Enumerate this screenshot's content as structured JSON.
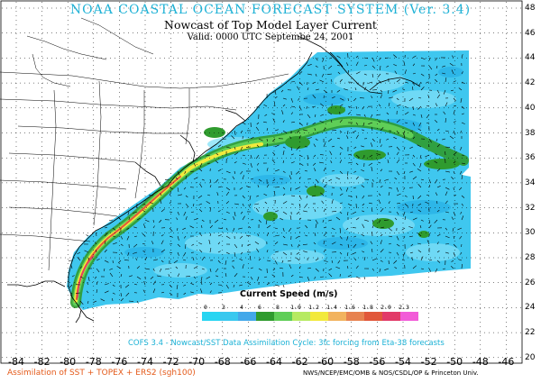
{
  "title": {
    "line1": "NOAA COASTAL OCEAN FORECAST SYSTEM (Ver. 3.4)",
    "line2": "Nowcast of Top Model Layer Current",
    "line3": "Valid: 0000 UTC Septembe 24, 2001"
  },
  "legend": {
    "title": "Current Speed (m/s)",
    "labels": [
      "0",
      "3",
      "4",
      "6",
      "8",
      "1.0",
      "1.2",
      "1.4",
      "1.6",
      "1.8",
      "2.0",
      "2.3"
    ],
    "colors": [
      "#27d5f2",
      "#39c8ef",
      "#43a8ea",
      "#2f9b2e",
      "#5fce57",
      "#b6ea62",
      "#f2e93c",
      "#f2b35e",
      "#e78250",
      "#e1573a",
      "#e23a68",
      "#f25bd8"
    ]
  },
  "footer": {
    "cofs_line": "COFS 3.4 - Nowcast/SST Data Assimilation Cycle: 3fc forcing from Eta-38 forecasts",
    "assimilation": "Assimilation of SST + TOPEX + ERS2 (sgh100)",
    "credit": "NWS/NCEP/EMC/OMB & NOS/CSDL/OP & Princeton Univ."
  },
  "axes": {
    "longitude_ticks": [
      "-84",
      "-82",
      "-80",
      "-78",
      "-76",
      "-74",
      "-72",
      "-70",
      "-68",
      "-66",
      "-64",
      "-62",
      "-60",
      "-58",
      "-56",
      "-54",
      "-52",
      "-50",
      "-48",
      "-46"
    ],
    "latitude_ticks": [
      "48",
      "46",
      "44",
      "42",
      "40",
      "38",
      "36",
      "34",
      "32",
      "30",
      "28",
      "26",
      "24",
      "22",
      "20"
    ]
  },
  "colors": {
    "ocean_base": "#3fc7ef",
    "ocean_light": "#7fe0f7",
    "ocean_mid": "#1fa9e3",
    "eddy_green": "#2f9b2e",
    "land_line": "#000000",
    "grid": "#000000"
  }
}
